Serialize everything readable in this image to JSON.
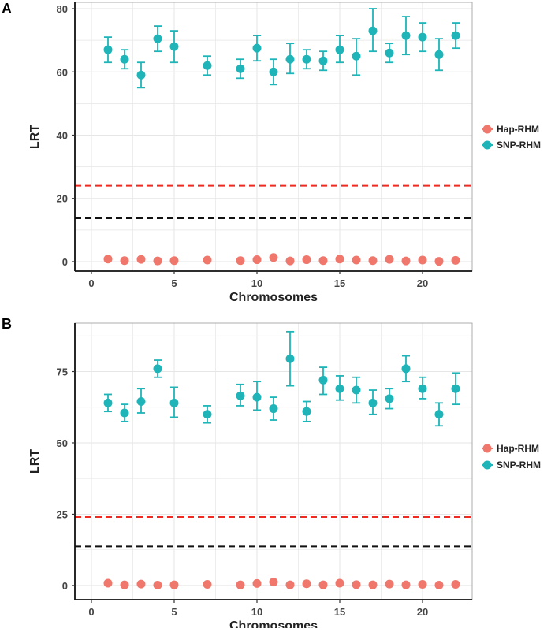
{
  "colors": {
    "hap": "#f0776c",
    "snp": "#1fb5b8",
    "ref_high": "#ee2b23",
    "ref_low": "#111111",
    "grid": "#e6e6e6",
    "axis_text": "#444444"
  },
  "chart_data": [
    {
      "panel_label": "A",
      "type": "scatter",
      "xlabel": "Chromosomes",
      "ylabel": "LRT",
      "xlim": [
        -1,
        23
      ],
      "ylim": [
        -3,
        82
      ],
      "xticks": [
        0,
        5,
        10,
        15,
        20
      ],
      "yticks": [
        0,
        20,
        40,
        60,
        80
      ],
      "grid": true,
      "legend": "right",
      "reference_lines": [
        {
          "y": 24,
          "color": "ref_high",
          "style": "dashed"
        },
        {
          "y": 13.7,
          "color": "ref_low",
          "style": "dashed"
        }
      ],
      "series": [
        {
          "name": "Hap-RHM",
          "color": "hap",
          "points": [
            {
              "x": 1,
              "y": 0.8
            },
            {
              "x": 2,
              "y": 0.3
            },
            {
              "x": 3,
              "y": 0.7
            },
            {
              "x": 4,
              "y": 0.2
            },
            {
              "x": 5,
              "y": 0.3
            },
            {
              "x": 7,
              "y": 0.5
            },
            {
              "x": 9,
              "y": 0.3
            },
            {
              "x": 10,
              "y": 0.6
            },
            {
              "x": 11,
              "y": 1.3
            },
            {
              "x": 12,
              "y": 0.2
            },
            {
              "x": 13,
              "y": 0.6
            },
            {
              "x": 14,
              "y": 0.3
            },
            {
              "x": 15,
              "y": 0.8
            },
            {
              "x": 16,
              "y": 0.5
            },
            {
              "x": 17,
              "y": 0.3
            },
            {
              "x": 18,
              "y": 0.7
            },
            {
              "x": 19,
              "y": 0.2
            },
            {
              "x": 20,
              "y": 0.5
            },
            {
              "x": 21,
              "y": 0.1
            },
            {
              "x": 22,
              "y": 0.4
            }
          ]
        },
        {
          "name": "SNP-RHM",
          "color": "snp",
          "points": [
            {
              "x": 1,
              "y": 67,
              "low": 63,
              "high": 71
            },
            {
              "x": 2,
              "y": 64,
              "low": 61,
              "high": 67
            },
            {
              "x": 3,
              "y": 59,
              "low": 55,
              "high": 63
            },
            {
              "x": 4,
              "y": 70.5,
              "low": 66.5,
              "high": 74.5
            },
            {
              "x": 5,
              "y": 68,
              "low": 63,
              "high": 73
            },
            {
              "x": 7,
              "y": 62,
              "low": 59,
              "high": 65
            },
            {
              "x": 9,
              "y": 61,
              "low": 58,
              "high": 64
            },
            {
              "x": 10,
              "y": 67.5,
              "low": 63.5,
              "high": 71.5
            },
            {
              "x": 11,
              "y": 60,
              "low": 56,
              "high": 64
            },
            {
              "x": 12,
              "y": 64,
              "low": 59.5,
              "high": 69
            },
            {
              "x": 13,
              "y": 64,
              "low": 61,
              "high": 67
            },
            {
              "x": 14,
              "y": 63.5,
              "low": 60.5,
              "high": 66.5
            },
            {
              "x": 15,
              "y": 67,
              "low": 63,
              "high": 71.5
            },
            {
              "x": 16,
              "y": 65,
              "low": 59,
              "high": 70.5
            },
            {
              "x": 17,
              "y": 73,
              "low": 66.5,
              "high": 80
            },
            {
              "x": 18,
              "y": 66,
              "low": 63,
              "high": 69
            },
            {
              "x": 19,
              "y": 71.5,
              "low": 65.5,
              "high": 77.5
            },
            {
              "x": 20,
              "y": 71,
              "low": 66.5,
              "high": 75.5
            },
            {
              "x": 21,
              "y": 65.5,
              "low": 60.5,
              "high": 70.5
            },
            {
              "x": 22,
              "y": 71.5,
              "low": 67.5,
              "high": 75.5
            }
          ]
        }
      ]
    },
    {
      "panel_label": "B",
      "type": "scatter",
      "xlabel": "Chromosomes",
      "ylabel": "LRT",
      "xlim": [
        -1,
        23
      ],
      "ylim": [
        -5,
        92
      ],
      "xticks": [
        0,
        5,
        10,
        15,
        20
      ],
      "yticks": [
        0,
        25,
        50,
        75
      ],
      "grid": true,
      "legend": "right",
      "reference_lines": [
        {
          "y": 24,
          "color": "ref_high",
          "style": "dashed"
        },
        {
          "y": 13.7,
          "color": "ref_low",
          "style": "dashed"
        }
      ],
      "series": [
        {
          "name": "Hap-RHM",
          "color": "hap",
          "points": [
            {
              "x": 1,
              "y": 0.8
            },
            {
              "x": 2,
              "y": 0.2
            },
            {
              "x": 3,
              "y": 0.5
            },
            {
              "x": 4,
              "y": 0.1
            },
            {
              "x": 5,
              "y": 0.2
            },
            {
              "x": 7,
              "y": 0.4
            },
            {
              "x": 9,
              "y": 0.2
            },
            {
              "x": 10,
              "y": 0.7
            },
            {
              "x": 11,
              "y": 1.2
            },
            {
              "x": 12,
              "y": 0.2
            },
            {
              "x": 13,
              "y": 0.6
            },
            {
              "x": 14,
              "y": 0.2
            },
            {
              "x": 15,
              "y": 0.8
            },
            {
              "x": 16,
              "y": 0.3
            },
            {
              "x": 17,
              "y": 0.2
            },
            {
              "x": 18,
              "y": 0.5
            },
            {
              "x": 19,
              "y": 0.2
            },
            {
              "x": 20,
              "y": 0.4
            },
            {
              "x": 21,
              "y": 0.1
            },
            {
              "x": 22,
              "y": 0.4
            }
          ]
        },
        {
          "name": "SNP-RHM",
          "color": "snp",
          "points": [
            {
              "x": 1,
              "y": 64,
              "low": 61,
              "high": 67
            },
            {
              "x": 2,
              "y": 60.5,
              "low": 57.5,
              "high": 63.5
            },
            {
              "x": 3,
              "y": 64.5,
              "low": 60.5,
              "high": 69
            },
            {
              "x": 4,
              "y": 76,
              "low": 73,
              "high": 79
            },
            {
              "x": 5,
              "y": 64,
              "low": 59,
              "high": 69.5
            },
            {
              "x": 7,
              "y": 60,
              "low": 57,
              "high": 63
            },
            {
              "x": 9,
              "y": 66.5,
              "low": 63,
              "high": 70.5
            },
            {
              "x": 10,
              "y": 66,
              "low": 61.5,
              "high": 71.5
            },
            {
              "x": 11,
              "y": 62,
              "low": 58,
              "high": 66
            },
            {
              "x": 12,
              "y": 79.5,
              "low": 70,
              "high": 89
            },
            {
              "x": 13,
              "y": 61,
              "low": 57.5,
              "high": 64.5
            },
            {
              "x": 14,
              "y": 72,
              "low": 67,
              "high": 76.5
            },
            {
              "x": 15,
              "y": 69,
              "low": 65,
              "high": 73.5
            },
            {
              "x": 16,
              "y": 68.5,
              "low": 64,
              "high": 73
            },
            {
              "x": 17,
              "y": 64,
              "low": 60,
              "high": 68.5
            },
            {
              "x": 18,
              "y": 65.5,
              "low": 62,
              "high": 69
            },
            {
              "x": 19,
              "y": 76,
              "low": 71.5,
              "high": 80.5
            },
            {
              "x": 20,
              "y": 69,
              "low": 65.5,
              "high": 73
            },
            {
              "x": 21,
              "y": 60,
              "low": 56,
              "high": 64
            },
            {
              "x": 22,
              "y": 69,
              "low": 63.5,
              "high": 74.5
            }
          ]
        }
      ]
    }
  ]
}
